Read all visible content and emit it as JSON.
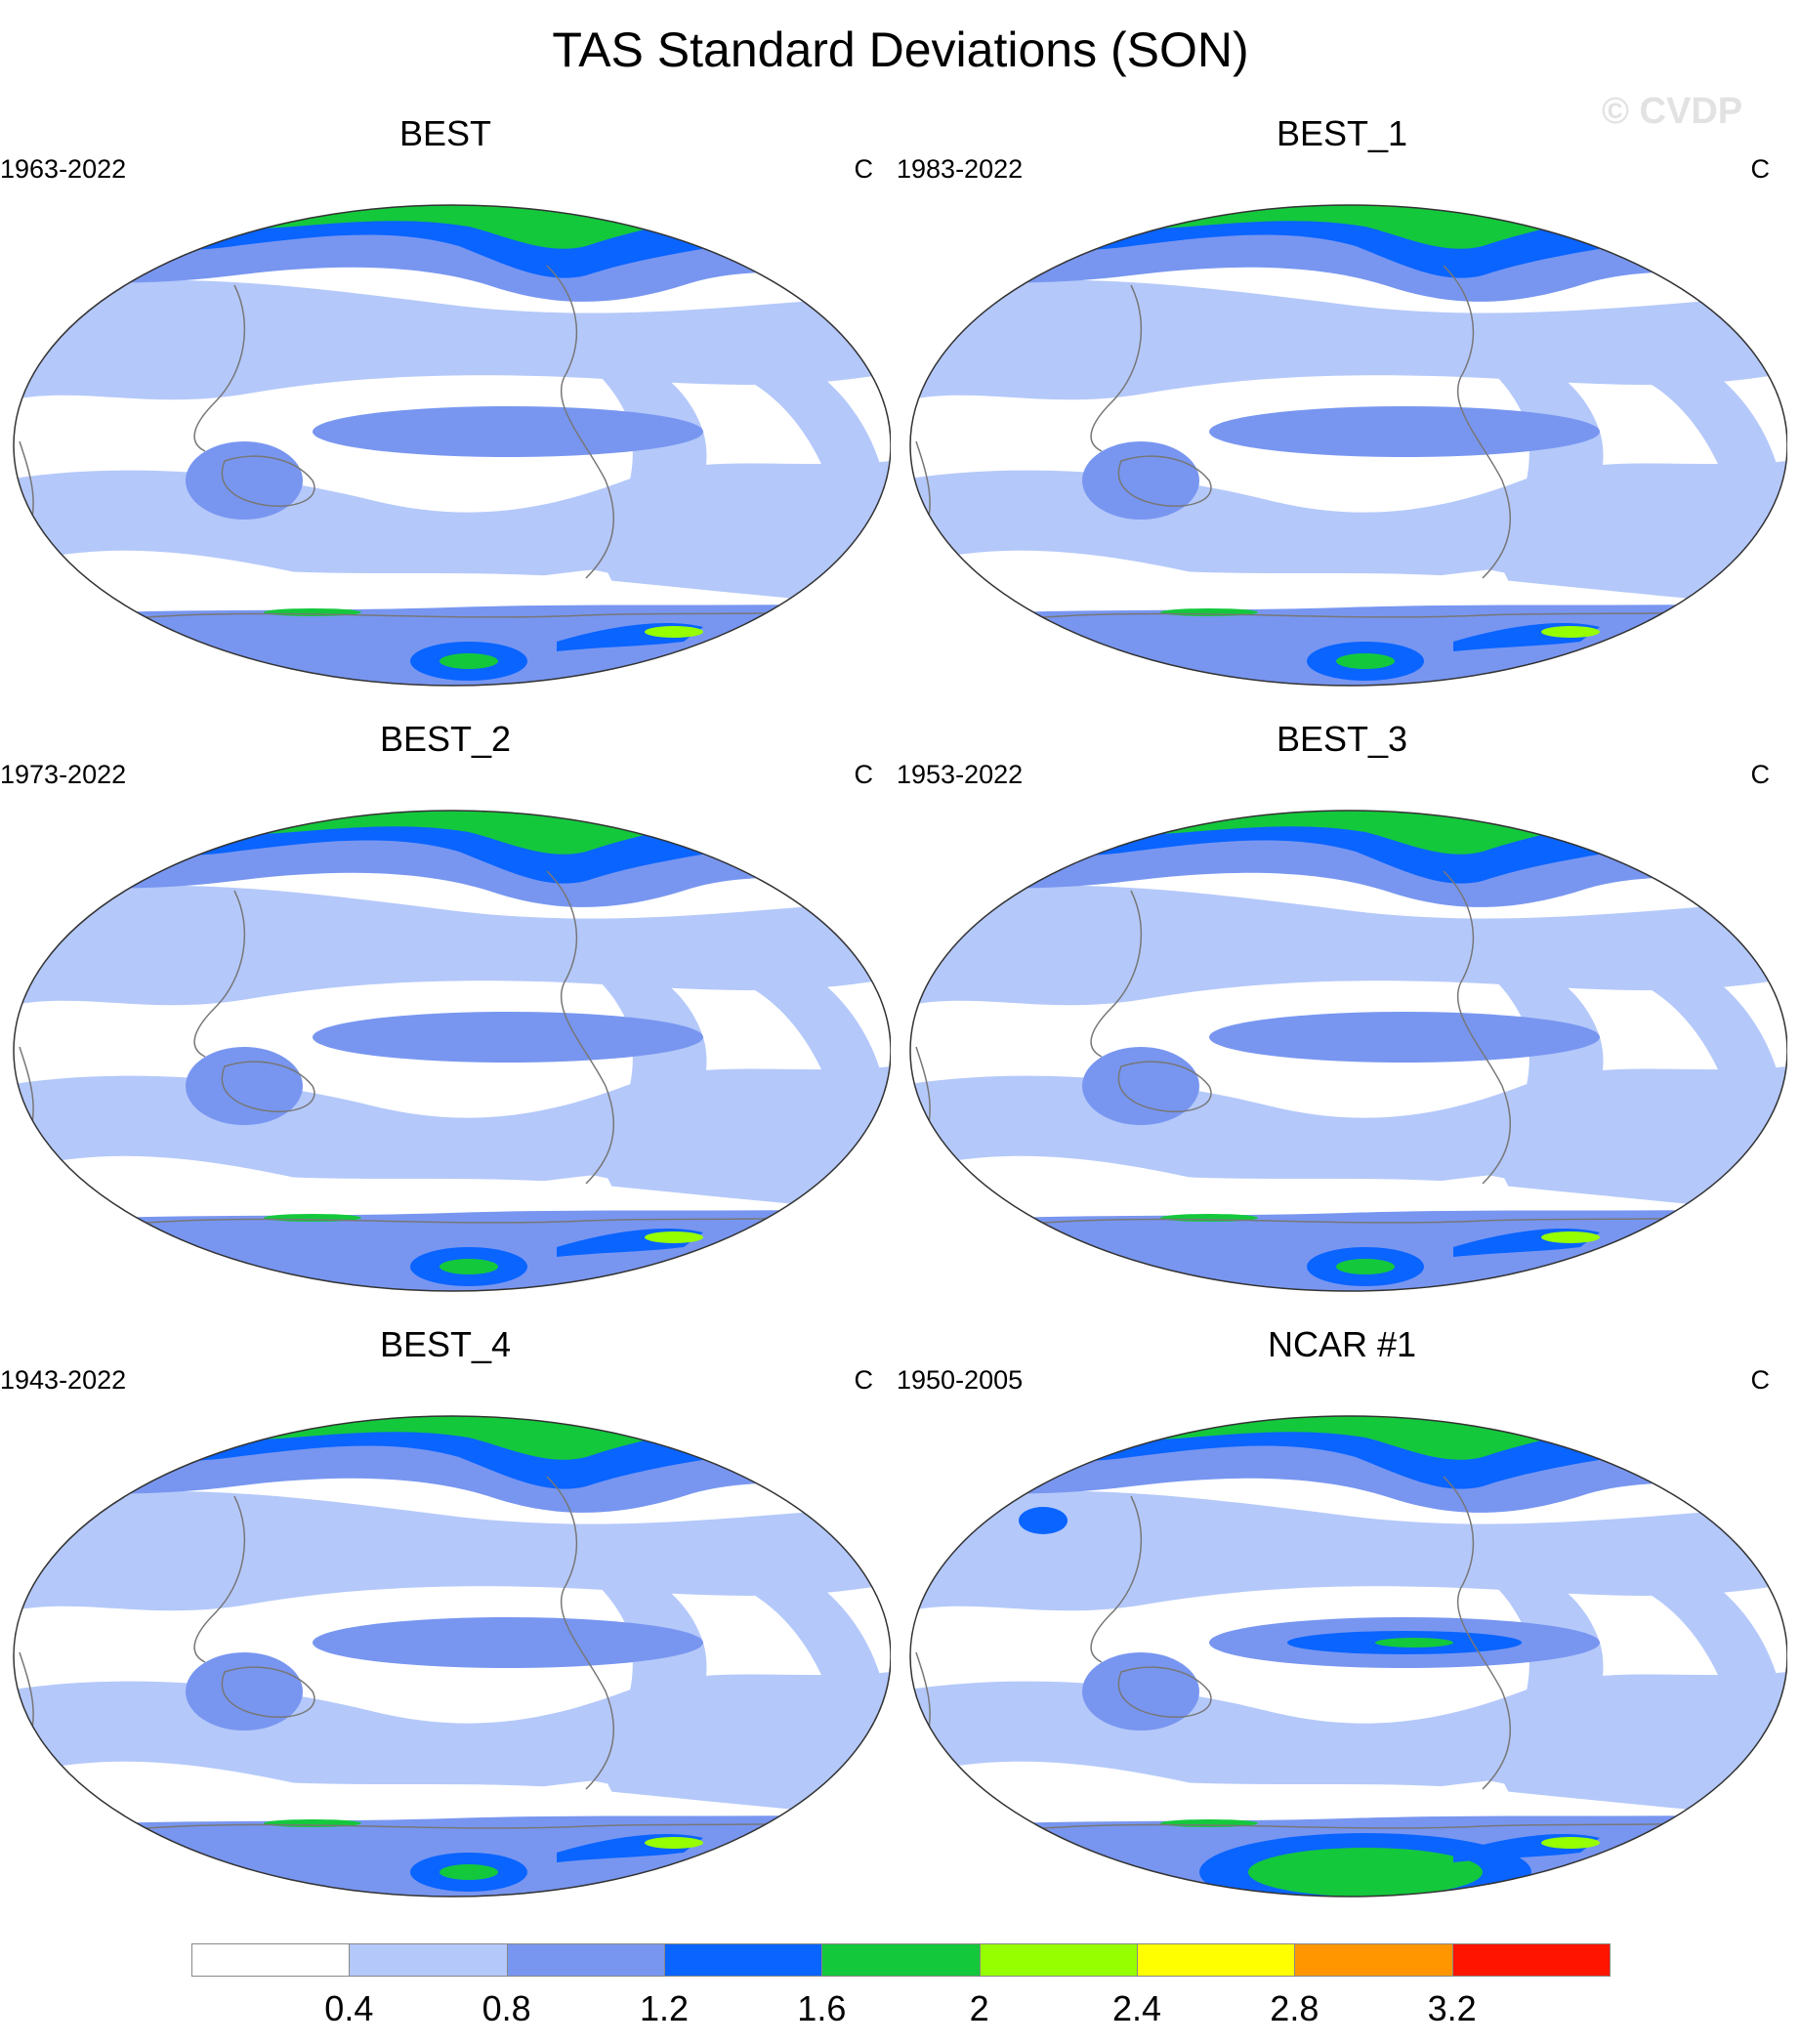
{
  "title": "TAS Standard Deviations (SON)",
  "watermark": "© CVDP",
  "panels": [
    {
      "name": "BEST",
      "years": "1963-2022",
      "units": "C"
    },
    {
      "name": "BEST_1",
      "years": "1983-2022",
      "units": "C"
    },
    {
      "name": "BEST_2",
      "years": "1973-2022",
      "units": "C"
    },
    {
      "name": "BEST_3",
      "years": "1953-2022",
      "units": "C"
    },
    {
      "name": "BEST_4",
      "years": "1943-2022",
      "units": "C"
    },
    {
      "name": "NCAR #1",
      "years": "1950-2005",
      "units": "C"
    }
  ],
  "colorbar": {
    "labels": [
      "0.4",
      "0.8",
      "1.2",
      "1.6",
      "2",
      "2.4",
      "2.8",
      "3.2"
    ],
    "colors": [
      "#ffffff",
      "#b4c8fa",
      "#7896f0",
      "#0a64ff",
      "#14c83c",
      "#96ff00",
      "#ffff00",
      "#ff9600",
      "#ff1400"
    ]
  }
}
